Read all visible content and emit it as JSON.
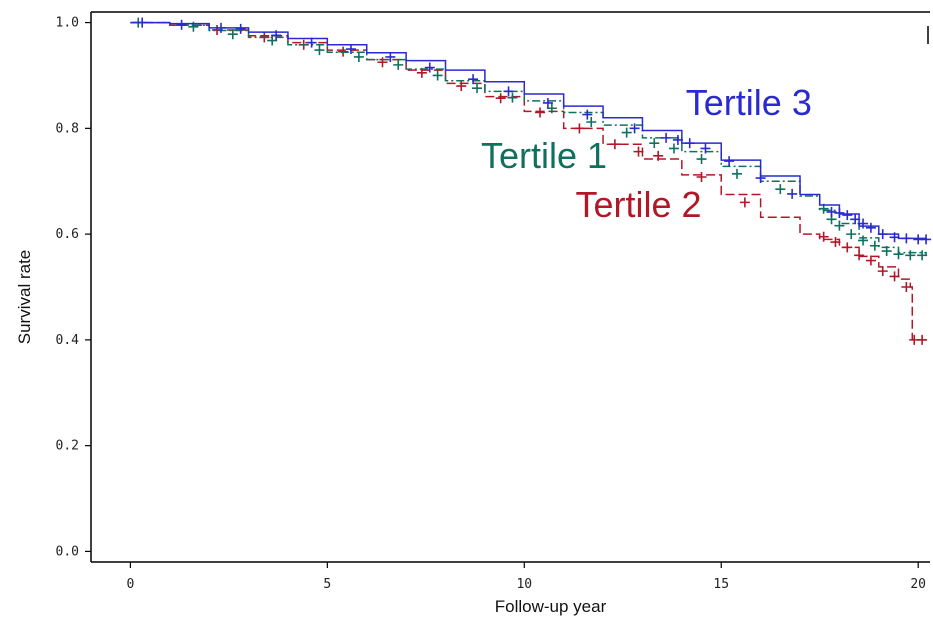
{
  "chart_data": {
    "type": "line",
    "title": "",
    "xlabel": "Follow-up year",
    "ylabel": "Survival rate",
    "xlim": [
      -1,
      20.3
    ],
    "ylim": [
      -0.02,
      1.02
    ],
    "x_ticks": [
      0,
      5,
      10,
      15,
      20
    ],
    "y_ticks": [
      0.0,
      0.2,
      0.4,
      0.6,
      0.8,
      1.0
    ],
    "x_tick_labels": [
      "0",
      "5",
      "10",
      "15",
      "20"
    ],
    "y_tick_labels": [
      "0.0",
      "0.2",
      "0.4",
      "0.6",
      "0.8",
      "1.0"
    ],
    "grid": false,
    "series": [
      {
        "name": "Tertile 3",
        "color": "#2a2ad0",
        "dash": "solid",
        "x": [
          0,
          1,
          2,
          3,
          4,
          5,
          6,
          7,
          8,
          9,
          10,
          11,
          12,
          13,
          14,
          15,
          16,
          17,
          17.5,
          18,
          18.5,
          19,
          19.5,
          20.2
        ],
        "y": [
          1.0,
          0.998,
          0.99,
          0.982,
          0.97,
          0.958,
          0.943,
          0.928,
          0.91,
          0.888,
          0.865,
          0.842,
          0.82,
          0.796,
          0.772,
          0.74,
          0.71,
          0.675,
          0.655,
          0.638,
          0.615,
          0.6,
          0.592,
          0.59
        ],
        "censor_x": [
          0.3,
          1.3,
          2.3,
          2.8,
          3.7,
          4.6,
          5.6,
          6.6,
          7.6,
          8.7,
          9.6,
          10.6,
          11.6,
          12.8,
          13.6,
          13.9,
          14.2,
          14.6,
          15.2,
          16.0,
          16.8,
          17.8,
          18.0,
          18.2,
          18.4,
          18.6,
          18.8,
          19.1,
          19.4,
          19.7,
          20.0,
          20.2
        ],
        "censor_y": [
          1.0,
          0.996,
          0.99,
          0.988,
          0.976,
          0.962,
          0.95,
          0.935,
          0.915,
          0.893,
          0.87,
          0.848,
          0.826,
          0.8,
          0.782,
          0.778,
          0.772,
          0.762,
          0.738,
          0.706,
          0.676,
          0.642,
          0.64,
          0.636,
          0.628,
          0.62,
          0.612,
          0.6,
          0.594,
          0.592,
          0.59,
          0.59
        ]
      },
      {
        "name": "Tertile 1",
        "color": "#107060",
        "dash": "dashdot",
        "x": [
          0,
          1,
          2,
          3,
          4,
          5,
          6,
          7,
          8,
          9,
          10,
          11,
          12,
          13,
          14,
          15,
          16,
          17,
          17.5,
          18,
          18.5,
          19,
          19.5,
          20.2
        ],
        "y": [
          1.0,
          0.995,
          0.985,
          0.972,
          0.958,
          0.944,
          0.93,
          0.912,
          0.89,
          0.87,
          0.852,
          0.83,
          0.806,
          0.782,
          0.756,
          0.728,
          0.7,
          0.672,
          0.645,
          0.62,
          0.593,
          0.575,
          0.565,
          0.56
        ],
        "censor_x": [
          0.2,
          1.6,
          2.6,
          3.6,
          4.8,
          5.8,
          6.8,
          7.8,
          8.8,
          9.7,
          10.7,
          11.7,
          12.6,
          13.3,
          13.8,
          14.5,
          15.4,
          16.5,
          17.6,
          17.8,
          18.0,
          18.3,
          18.6,
          18.9,
          19.2,
          19.5,
          19.8,
          20.1
        ],
        "censor_y": [
          1.0,
          0.992,
          0.978,
          0.966,
          0.948,
          0.935,
          0.92,
          0.9,
          0.876,
          0.858,
          0.838,
          0.812,
          0.792,
          0.772,
          0.762,
          0.742,
          0.714,
          0.685,
          0.648,
          0.628,
          0.616,
          0.6,
          0.588,
          0.578,
          0.568,
          0.562,
          0.56,
          0.56
        ]
      },
      {
        "name": "Tertile 2",
        "color": "#b01828",
        "dash": "longdash",
        "x": [
          0,
          1,
          2,
          3,
          4,
          5,
          6,
          7,
          8,
          9,
          10,
          11,
          12,
          13,
          14,
          15,
          16,
          17,
          17.5,
          18,
          18.5,
          19,
          19.5,
          19.8,
          19.85,
          20.2
        ],
        "y": [
          1.0,
          0.995,
          0.986,
          0.975,
          0.962,
          0.948,
          0.93,
          0.91,
          0.885,
          0.86,
          0.832,
          0.8,
          0.77,
          0.742,
          0.712,
          0.675,
          0.632,
          0.6,
          0.59,
          0.575,
          0.558,
          0.538,
          0.515,
          0.5,
          0.4,
          0.4
        ],
        "censor_x": [
          2.2,
          3.4,
          4.4,
          5.4,
          6.4,
          7.4,
          8.4,
          9.4,
          10.4,
          11.4,
          12.3,
          12.9,
          13.4,
          14.5,
          15.6,
          17.6,
          17.9,
          18.2,
          18.5,
          18.8,
          19.1,
          19.4,
          19.7,
          19.9,
          20.1
        ],
        "censor_y": [
          0.986,
          0.972,
          0.958,
          0.945,
          0.925,
          0.905,
          0.88,
          0.857,
          0.83,
          0.8,
          0.77,
          0.756,
          0.748,
          0.708,
          0.66,
          0.595,
          0.585,
          0.575,
          0.56,
          0.55,
          0.53,
          0.52,
          0.5,
          0.4,
          0.4
        ]
      }
    ]
  }
}
